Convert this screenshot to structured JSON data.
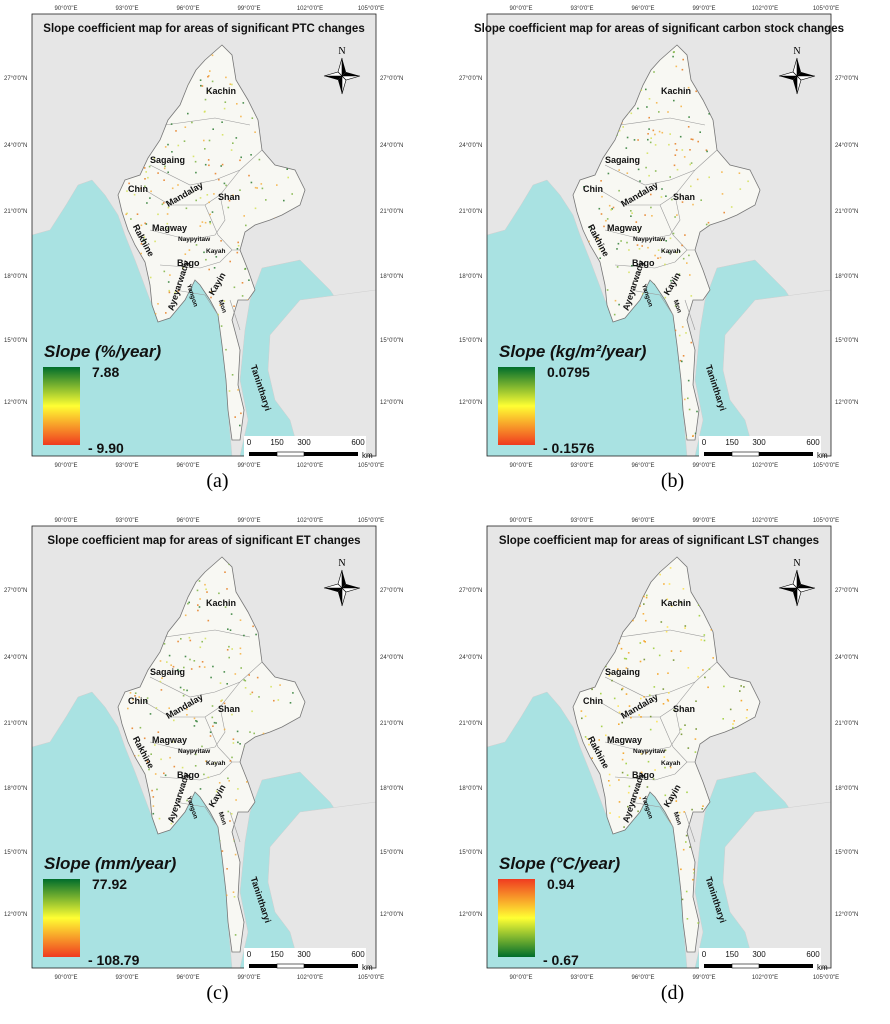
{
  "panels": [
    {
      "caption": "(a)",
      "title": "Slope coefficient map for areas of significant PTC changes",
      "legend_title": "Slope (%/year)",
      "legend_max": "7.88",
      "legend_min": "- 9.90",
      "ramp": "green-top",
      "regions": {
        "kachin": "Kachin",
        "sagaing": "Sagaing",
        "chin": "Chin",
        "mandalay": "Mandalay",
        "shan": "Shan",
        "magway": "Magway",
        "naypyitaw": "Naypyitaw",
        "kayah": "Kayah",
        "rakhine": "Rakhine",
        "bago": "Bago",
        "ayeyarwady": "Ayeyarwady",
        "yangon": "Yangon",
        "mon": "Mon",
        "kayin": "Kayin",
        "tanintharyi": "Tanintharyi"
      },
      "north": "N",
      "scale": {
        "s0": "0",
        "s1": "150",
        "s2": "300",
        "s3": "600",
        "unit": "km"
      }
    },
    {
      "caption": "(b)",
      "title": "Slope coefficient map for areas of significant carbon stock changes",
      "legend_title": "Slope (kg/m²/year)",
      "legend_max": "0.0795",
      "legend_min": "- 0.1576",
      "ramp": "green-top",
      "regions": {
        "kachin": "Kachin",
        "sagaing": "Sagaing",
        "chin": "Chin",
        "mandalay": "Mandalay",
        "shan": "Shan",
        "magway": "Magway",
        "naypyitaw": "Naypyitaw",
        "kayah": "Kayah",
        "rakhine": "Rakhine",
        "bago": "Bago",
        "ayeyarwady": "Ayeyarwady",
        "yangon": "Yangon",
        "mon": "Mon",
        "kayin": "Kayin",
        "tanintharyi": "Tanintharyi"
      },
      "north": "N",
      "scale": {
        "s0": "0",
        "s1": "150",
        "s2": "300",
        "s3": "600",
        "unit": "km"
      }
    },
    {
      "caption": "(c)",
      "title": "Slope coefficient map for areas of significant ET changes",
      "legend_title": "Slope (mm/year)",
      "legend_max": "77.92",
      "legend_min": "- 108.79",
      "ramp": "green-top",
      "regions": {
        "kachin": "Kachin",
        "sagaing": "Sagaing",
        "chin": "Chin",
        "mandalay": "Mandalay",
        "shan": "Shan",
        "magway": "Magway",
        "naypyitaw": "Naypyitaw",
        "kayah": "Kayah",
        "rakhine": "Rakhine",
        "bago": "Bago",
        "ayeyarwady": "Ayeyarwady",
        "yangon": "Yangon",
        "mon": "Mon",
        "kayin": "Kayin",
        "tanintharyi": "Tanintharyi"
      },
      "north": "N",
      "scale": {
        "s0": "0",
        "s1": "150",
        "s2": "300",
        "s3": "600",
        "unit": "km"
      }
    },
    {
      "caption": "(d)",
      "title": "Slope coefficient map for areas of significant LST changes",
      "legend_title": "Slope (°C/year)",
      "legend_max": "0.94",
      "legend_min": "- 0.67",
      "ramp": "red-top",
      "regions": {
        "kachin": "Kachin",
        "sagaing": "Sagaing",
        "chin": "Chin",
        "mandalay": "Mandalay",
        "shan": "Shan",
        "magway": "Magway",
        "naypyitaw": "Naypyitaw",
        "kayah": "Kayah",
        "rakhine": "Rakhine",
        "bago": "Bago",
        "ayeyarwady": "Ayeyarwady",
        "yangon": "Yangon",
        "mon": "Mon",
        "kayin": "Kayin",
        "tanintharyi": "Tanintharyi"
      },
      "north": "N",
      "scale": {
        "s0": "0",
        "s1": "150",
        "s2": "300",
        "s3": "600",
        "unit": "km"
      }
    }
  ],
  "graticule": {
    "lon": [
      "90°0'0\"E",
      "93°0'0\"E",
      "96°0'0\"E",
      "99°0'0\"E",
      "102°0'0\"E",
      "105°0'0\"E"
    ],
    "lat": [
      "27°0'0\"N",
      "24°0'0\"N",
      "21°0'0\"N",
      "18°0'0\"N",
      "15°0'0\"N",
      "12°0'0\"N"
    ]
  },
  "colors": {
    "sea": "#a9e2e2",
    "land_bg": "#e6e6e6",
    "myanmar": "#f8f8f3",
    "ramp_green": "#006d2c",
    "ramp_yellow": "#ffff33",
    "ramp_red": "#f03b20"
  }
}
